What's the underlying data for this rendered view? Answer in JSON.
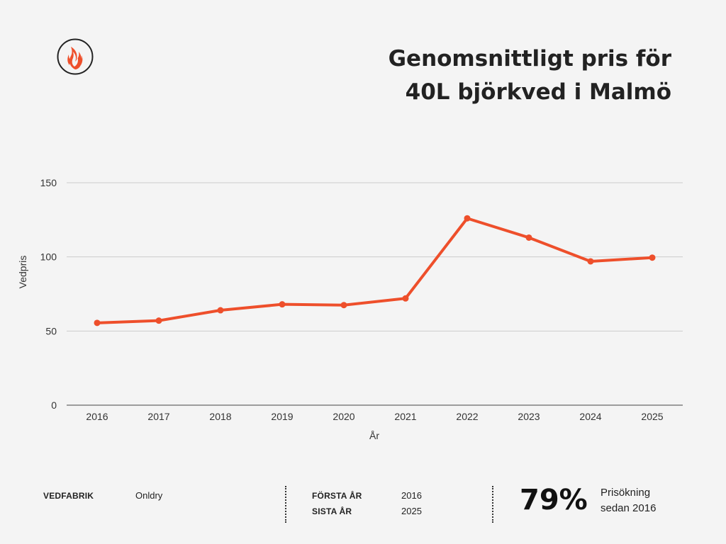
{
  "header": {
    "title_line1": "Genomsnittligt pris för",
    "title_line2": "40L björkved i Malmö",
    "logo_icon": "flame-icon"
  },
  "colors": {
    "accent": "#ee4f2b",
    "background": "#f4f4f4",
    "grid": "#cccccc",
    "text": "#222222"
  },
  "chart_data": {
    "type": "line",
    "xlabel": "År",
    "ylabel": "Vedpris",
    "ylim": [
      0,
      150
    ],
    "yticks": [
      0,
      50,
      100,
      150
    ],
    "categories": [
      "2016",
      "2017",
      "2018",
      "2019",
      "2020",
      "2021",
      "2022",
      "2023",
      "2024",
      "2025"
    ],
    "series": [
      {
        "values": [
          55.5,
          57,
          64,
          68,
          67.5,
          72,
          126,
          113,
          97,
          99.5
        ]
      }
    ],
    "grid": true,
    "legend": false
  },
  "footer": {
    "vedfabrik_label": "VEDFABRIK",
    "vedfabrik_value": "Onldry",
    "forsta_label": "FÖRSTA ÅR",
    "forsta_value": "2016",
    "sista_label": "SISTA ÅR",
    "sista_value": "2025",
    "big_stat": "79%",
    "note_line1": "Prisökning",
    "note_line2": "sedan 2016"
  }
}
